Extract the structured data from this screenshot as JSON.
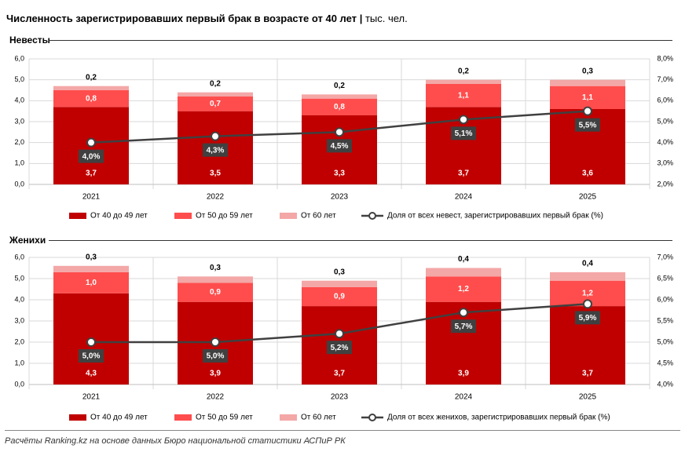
{
  "title": "Численность зарегистрировавших первый брак в возрасте от 40 лет",
  "title_separator": "|",
  "title_unit": "тыс. чел.",
  "colors": {
    "band_40_49": "#c00000",
    "band_50_59": "#ff4d4d",
    "band_60_plus": "#f4a7a7",
    "share_line": "#404040",
    "label_box": "#404040"
  },
  "chart_data": [
    {
      "type": "bar",
      "stacked": true,
      "title": "Невесты",
      "categories": [
        "2021",
        "2022",
        "2023",
        "2024",
        "2025"
      ],
      "ylim": [
        0,
        6
      ],
      "yticks": [
        "0,0",
        "1,0",
        "2,0",
        "3,0",
        "4,0",
        "5,0",
        "6,0"
      ],
      "y2lim": [
        2,
        8
      ],
      "y2ticks": [
        "2,0%",
        "3,0%",
        "4,0%",
        "5,0%",
        "6,0%",
        "7,0%",
        "8,0%"
      ],
      "grid": true,
      "legend_position": "bottom",
      "series": [
        {
          "name": "От 40 до 49 лет",
          "kind": "bar",
          "values": [
            3.7,
            3.5,
            3.3,
            3.7,
            3.6
          ],
          "labels": [
            "3,7",
            "3,5",
            "3,3",
            "3,7",
            "3,6"
          ]
        },
        {
          "name": "От 50 до 59 лет",
          "kind": "bar",
          "values": [
            0.8,
            0.7,
            0.8,
            1.1,
            1.1
          ],
          "labels": [
            "0,8",
            "0,7",
            "0,8",
            "1,1",
            "1,1"
          ]
        },
        {
          "name": "От 60 лет",
          "kind": "bar",
          "values": [
            0.2,
            0.2,
            0.2,
            0.2,
            0.3
          ],
          "labels": [
            "0,2",
            "0,2",
            "0,2",
            "0,2",
            "0,3"
          ]
        },
        {
          "name": "Доля от всех невест, зарегистрировавших первый брак (%)",
          "kind": "line",
          "axis": "right",
          "values": [
            4.0,
            4.3,
            4.5,
            5.1,
            5.5
          ],
          "labels": [
            "4,0%",
            "4,3%",
            "4,5%",
            "5,1%",
            "5,5%"
          ]
        }
      ]
    },
    {
      "type": "bar",
      "stacked": true,
      "title": "Женихи",
      "categories": [
        "2021",
        "2022",
        "2023",
        "2024",
        "2025"
      ],
      "ylim": [
        0,
        6
      ],
      "yticks": [
        "0,0",
        "1,0",
        "2,0",
        "3,0",
        "4,0",
        "5,0",
        "6,0"
      ],
      "y2lim": [
        4,
        7
      ],
      "y2ticks": [
        "4,0%",
        "4,5%",
        "5,0%",
        "5,5%",
        "6,0%",
        "6,5%",
        "7,0%"
      ],
      "grid": true,
      "legend_position": "bottom",
      "series": [
        {
          "name": "От 40 до 49 лет",
          "kind": "bar",
          "values": [
            4.3,
            3.9,
            3.7,
            3.9,
            3.7
          ],
          "labels": [
            "4,3",
            "3,9",
            "3,7",
            "3,9",
            "3,7"
          ]
        },
        {
          "name": "От 50 до 59 лет",
          "kind": "bar",
          "values": [
            1.0,
            0.9,
            0.9,
            1.2,
            1.2
          ],
          "labels": [
            "1,0",
            "0,9",
            "0,9",
            "1,2",
            "1,2"
          ]
        },
        {
          "name": "От 60 лет",
          "kind": "bar",
          "values": [
            0.3,
            0.3,
            0.3,
            0.4,
            0.4
          ],
          "labels": [
            "0,3",
            "0,3",
            "0,3",
            "0,4",
            "0,4"
          ]
        },
        {
          "name": "Доля от всех женихов, зарегистрировавших первый брак (%)",
          "kind": "line",
          "axis": "right",
          "values": [
            5.0,
            5.0,
            5.2,
            5.7,
            5.9
          ],
          "labels": [
            "5,0%",
            "5,0%",
            "5,2%",
            "5,7%",
            "5,9%"
          ]
        }
      ]
    }
  ],
  "footnote": "Расчёты Ranking.kz на основе данных Бюро национальной статистики АСПиР РК"
}
